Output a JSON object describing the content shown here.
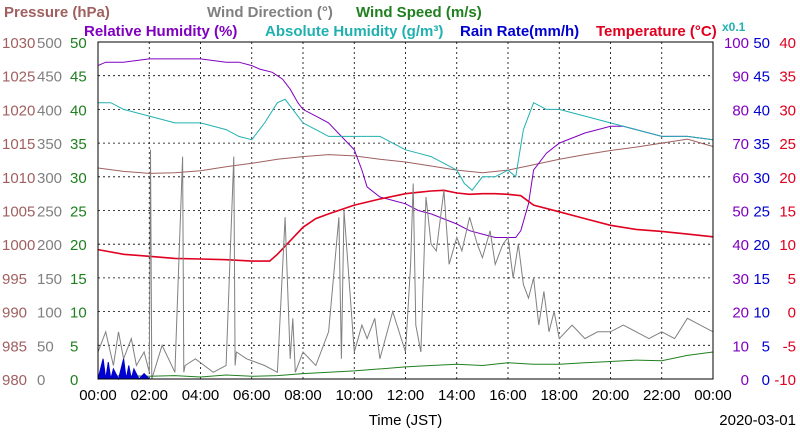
{
  "chart_data": {
    "type": "line",
    "date": "2020-03-01",
    "xlabel": "Time (JST)",
    "x_ticks": [
      "00:00",
      "02:00",
      "04:00",
      "06:00",
      "08:00",
      "10:00",
      "12:00",
      "14:00",
      "16:00",
      "18:00",
      "20:00",
      "22:00",
      "00:00"
    ],
    "legend": [
      {
        "text": "Pressure (hPa)",
        "color": "#a06060"
      },
      {
        "text": "Wind Direction (°)",
        "color": "#808080"
      },
      {
        "text": "Wind Speed (m/s)",
        "color": "#208020"
      },
      {
        "text": "Relative Humidity (%)",
        "color": "#8000c0"
      },
      {
        "text": "Absolute Humidity (g/m³)",
        "color": "#20b0b0"
      },
      {
        "text": "Rain Rate(mm/h)",
        "color": "#0000d0"
      },
      {
        "text": "Temperature (°C)",
        "color": "#e00020"
      },
      {
        "text": "x0.1",
        "color": "#20b0b0"
      }
    ],
    "axes": {
      "pressure": {
        "range": [
          980,
          1030
        ],
        "ticks": [
          "1030",
          "1025",
          "1020",
          "1015",
          "1010",
          "1005",
          "1000",
          "995",
          "990",
          "985",
          "980"
        ],
        "color": "#a06060"
      },
      "wind_direction": {
        "range": [
          0,
          500
        ],
        "ticks": [
          "500",
          "450",
          "400",
          "350",
          "300",
          "250",
          "200",
          "150",
          "100",
          "50",
          "0"
        ],
        "color": "#808080"
      },
      "wind_speed": {
        "range": [
          0,
          50
        ],
        "ticks": [
          "50",
          "45",
          "40",
          "35",
          "30",
          "25",
          "20",
          "15",
          "10",
          "5",
          "0"
        ],
        "color": "#208020"
      },
      "humidity": {
        "range": [
          0,
          100
        ],
        "ticks": [
          "100",
          "90",
          "80",
          "70",
          "60",
          "50",
          "40",
          "30",
          "20",
          "10",
          "0"
        ],
        "color": "#8000c0"
      },
      "rain_rate": {
        "range": [
          0,
          50
        ],
        "ticks": [
          "50",
          "45",
          "40",
          "35",
          "30",
          "25",
          "20",
          "15",
          "10",
          "5",
          "0"
        ],
        "color": "#0000d0"
      },
      "temperature": {
        "range": [
          -10,
          40
        ],
        "ticks": [
          "40",
          "35",
          "30",
          "25",
          "20",
          "15",
          "10",
          "5",
          "0",
          "-5",
          "-10"
        ],
        "color": "#e00020"
      }
    },
    "series": [
      {
        "name": "Pressure (hPa)",
        "color": "#a06060",
        "axis": "pressure",
        "x": [
          0,
          1,
          2,
          3,
          4,
          5,
          6,
          7,
          8,
          9,
          10,
          11,
          12,
          13,
          14,
          15,
          16,
          17,
          18,
          19,
          20,
          21,
          22,
          23,
          24
        ],
        "y": [
          1011.3,
          1010.8,
          1010.5,
          1010.6,
          1010.9,
          1011.5,
          1012.0,
          1012.6,
          1013.0,
          1013.3,
          1013.1,
          1012.6,
          1012.2,
          1011.6,
          1011.0,
          1010.6,
          1011.0,
          1011.8,
          1012.6,
          1013.3,
          1013.9,
          1014.4,
          1015.0,
          1015.6,
          1014.5
        ]
      },
      {
        "name": "Relative Humidity (%)",
        "color": "#8000c0",
        "axis": "humidity",
        "x": [
          0,
          0.3,
          1.0,
          2.0,
          3.0,
          4.0,
          5.0,
          5.5,
          6.0,
          6.3,
          6.8,
          7.2,
          7.5,
          7.8,
          8.0,
          8.5,
          9.0,
          9.5,
          10.0,
          10.3,
          10.5,
          11.0,
          11.5,
          12.0,
          12.5,
          13.0,
          14.0,
          14.5,
          15.0,
          15.5,
          16.0,
          16.3,
          16.5,
          16.8,
          17.0,
          17.5,
          18.0,
          19.0,
          20.0,
          20.5,
          21.0,
          22.0,
          23.0,
          24.0
        ],
        "y": [
          93,
          94,
          94,
          95,
          95,
          95,
          94,
          94,
          93,
          92,
          91,
          89,
          86,
          82,
          80,
          78,
          76,
          72,
          68,
          62,
          57,
          54,
          53,
          52,
          50,
          49,
          46,
          44,
          43,
          42,
          42,
          42,
          44,
          52,
          62,
          67,
          70,
          73,
          75,
          75,
          74,
          72,
          72,
          71
        ]
      },
      {
        "name": "Absolute Humidity (g/m³)",
        "color": "#20b0b0",
        "axis": "wind_speed",
        "x": [
          0,
          0.5,
          1,
          2,
          3,
          4,
          5,
          5.5,
          6,
          6.5,
          7,
          7.3,
          7.6,
          8,
          8.5,
          9,
          9.5,
          10,
          11,
          12,
          12.5,
          13,
          13.5,
          14,
          14.3,
          14.6,
          15,
          15.5,
          16,
          16.3,
          16.6,
          17,
          17.5,
          18,
          19,
          20,
          21,
          22,
          23,
          24
        ],
        "y": [
          41,
          41,
          40,
          39,
          38,
          38,
          37,
          36,
          35.5,
          38,
          41,
          41.5,
          40,
          38,
          37,
          36,
          36,
          36,
          36,
          34,
          33.5,
          33,
          32,
          31,
          29,
          28,
          30,
          30,
          31,
          30,
          37,
          41,
          40,
          40,
          39,
          38,
          37,
          36,
          36,
          35.5
        ]
      },
      {
        "name": "Temperature (°C)",
        "color": "#e00020",
        "axis": "temperature",
        "x": [
          0,
          1,
          2,
          3,
          4,
          5,
          6,
          6.7,
          7,
          7.5,
          8,
          8.5,
          9,
          10,
          11,
          12,
          12.5,
          13,
          13.5,
          14,
          14.5,
          15,
          15.5,
          16,
          16.5,
          17,
          18,
          19,
          20,
          21,
          22,
          23,
          24
        ],
        "y": [
          9.2,
          8.5,
          8.2,
          7.9,
          7.8,
          7.7,
          7.5,
          7.5,
          8.5,
          10.5,
          12.5,
          13.8,
          14.5,
          15.8,
          16.7,
          17.5,
          17.7,
          17.9,
          18.0,
          17.6,
          17.4,
          17.5,
          17.5,
          17.4,
          17.2,
          15.8,
          14.8,
          13.8,
          12.8,
          12.2,
          11.9,
          11.5,
          11.1
        ]
      },
      {
        "name": "Wind Direction (°)",
        "color": "#808080",
        "axis": "wind_direction",
        "x": [
          0,
          0.3,
          0.6,
          0.8,
          1.0,
          1.3,
          1.5,
          1.8,
          2.0,
          2.05,
          2.1,
          2.5,
          3.0,
          3.3,
          3.35,
          3.4,
          3.8,
          4.5,
          5.0,
          5.3,
          5.35,
          5.4,
          5.8,
          6.5,
          7.0,
          7.3,
          7.5,
          7.6,
          7.7,
          8.0,
          8.5,
          9.0,
          9.4,
          9.5,
          9.6,
          10.0,
          10.3,
          10.5,
          10.8,
          11.0,
          11.5,
          12.0,
          12.2,
          12.3,
          12.4,
          12.6,
          12.8,
          13.0,
          13.2,
          13.5,
          13.7,
          14.0,
          14.2,
          14.5,
          14.8,
          15.0,
          15.3,
          15.5,
          15.8,
          16.0,
          16.2,
          16.4,
          16.6,
          16.8,
          17.0,
          17.2,
          17.4,
          17.6,
          17.8,
          18.0,
          18.5,
          19.0,
          19.5,
          20.0,
          20.5,
          21.0,
          21.5,
          22.0,
          22.5,
          23.0,
          23.5,
          24.0
        ],
        "y": [
          40,
          70,
          20,
          70,
          30,
          60,
          20,
          40,
          10,
          340,
          0,
          50,
          10,
          330,
          10,
          20,
          30,
          10,
          20,
          330,
          20,
          40,
          30,
          20,
          10,
          240,
          30,
          90,
          10,
          40,
          20,
          70,
          240,
          30,
          250,
          40,
          80,
          60,
          90,
          30,
          100,
          40,
          170,
          290,
          80,
          40,
          270,
          200,
          190,
          280,
          170,
          210,
          190,
          240,
          200,
          180,
          220,
          170,
          200,
          210,
          150,
          200,
          140,
          120,
          150,
          80,
          130,
          70,
          100,
          60,
          80,
          60,
          70,
          70,
          80,
          70,
          60,
          70,
          60,
          90,
          80,
          70
        ]
      },
      {
        "name": "Wind Speed (m/s)",
        "color": "#208020",
        "axis": "wind_speed",
        "x": [
          0,
          1,
          2,
          3,
          4,
          5,
          6,
          7,
          8,
          9,
          10,
          11,
          12,
          13,
          14,
          15,
          16,
          17,
          18,
          19,
          20,
          21,
          22,
          23,
          24
        ],
        "y": [
          0.3,
          0.5,
          0.4,
          0.5,
          0.3,
          0.6,
          0.4,
          0.5,
          0.8,
          1.0,
          1.2,
          1.5,
          1.8,
          2.0,
          2.2,
          2.0,
          2.4,
          2.2,
          2.2,
          2.4,
          2.6,
          2.8,
          2.7,
          3.5,
          4.0
        ]
      },
      {
        "name": "Rain Rate(mm/h)",
        "color": "#0000d0",
        "axis": "rain_rate",
        "x": [
          0,
          0.2,
          0.3,
          0.4,
          0.5,
          0.6,
          0.8,
          1.0,
          1.1,
          1.2,
          1.3,
          1.4,
          1.6,
          1.8,
          2.0,
          24
        ],
        "y": [
          0,
          3,
          0,
          2.5,
          0,
          1.5,
          0,
          3,
          0,
          2,
          0,
          1.5,
          0,
          0.8,
          0,
          0
        ]
      }
    ]
  }
}
